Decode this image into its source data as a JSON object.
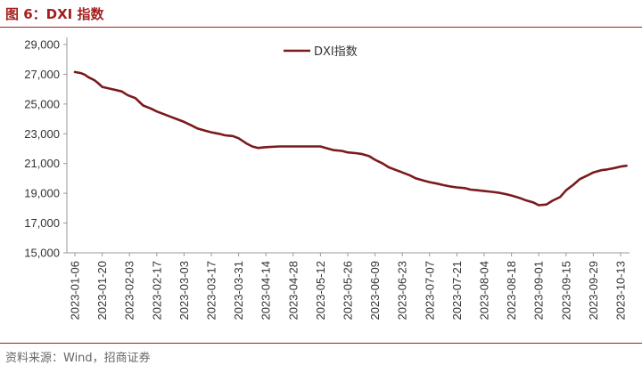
{
  "figure": {
    "title": "图 6：DXI 指数",
    "source": "资料来源：Wind，招商证券"
  },
  "chart_data": {
    "type": "line",
    "title": "",
    "xlabel": "",
    "ylabel": "",
    "ylim": [
      15000,
      29000
    ],
    "yticks": [
      15000,
      17000,
      19000,
      21000,
      23000,
      25000,
      27000,
      29000
    ],
    "ytick_labels": [
      "15,000",
      "17,000",
      "19,000",
      "21,000",
      "23,000",
      "25,000",
      "27,000",
      "29,000"
    ],
    "xticks": [
      "2023-01-06",
      "2023-01-20",
      "2023-02-03",
      "2023-02-17",
      "2023-03-03",
      "2023-03-17",
      "2023-03-31",
      "2023-04-14",
      "2023-04-28",
      "2023-05-12",
      "2023-05-26",
      "2023-06-09",
      "2023-06-23",
      "2023-07-07",
      "2023-07-21",
      "2023-08-04",
      "2023-08-18",
      "2023-09-01",
      "2023-09-15",
      "2023-09-29",
      "2023-10-13"
    ],
    "grid": false,
    "legend": "top-center",
    "series": [
      {
        "name": "DXI指数",
        "color": "#7a1a1c",
        "x": [
          "2023-01-06",
          "2023-01-09",
          "2023-01-11",
          "2023-01-13",
          "2023-01-16",
          "2023-01-18",
          "2023-01-20",
          "2023-01-25",
          "2023-01-30",
          "2023-02-02",
          "2023-02-03",
          "2023-02-06",
          "2023-02-10",
          "2023-02-14",
          "2023-02-17",
          "2023-02-20",
          "2023-02-24",
          "2023-02-28",
          "2023-03-03",
          "2023-03-07",
          "2023-03-10",
          "2023-03-14",
          "2023-03-17",
          "2023-03-21",
          "2023-03-24",
          "2023-03-28",
          "2023-03-31",
          "2023-04-04",
          "2023-04-07",
          "2023-04-10",
          "2023-04-14",
          "2023-04-21",
          "2023-04-28",
          "2023-05-05",
          "2023-05-12",
          "2023-05-16",
          "2023-05-19",
          "2023-05-23",
          "2023-05-26",
          "2023-05-30",
          "2023-06-02",
          "2023-06-06",
          "2023-06-09",
          "2023-06-13",
          "2023-06-16",
          "2023-06-20",
          "2023-06-23",
          "2023-06-27",
          "2023-06-30",
          "2023-07-04",
          "2023-07-07",
          "2023-07-11",
          "2023-07-14",
          "2023-07-18",
          "2023-07-21",
          "2023-07-25",
          "2023-07-28",
          "2023-08-01",
          "2023-08-04",
          "2023-08-08",
          "2023-08-11",
          "2023-08-15",
          "2023-08-18",
          "2023-08-22",
          "2023-08-25",
          "2023-08-29",
          "2023-09-01",
          "2023-09-05",
          "2023-09-08",
          "2023-09-12",
          "2023-09-15",
          "2023-09-19",
          "2023-09-22",
          "2023-09-26",
          "2023-09-29",
          "2023-10-03",
          "2023-10-06",
          "2023-10-10",
          "2023-10-13",
          "2023-10-16"
        ],
        "y": [
          27150,
          27080,
          26980,
          26800,
          26600,
          26400,
          26150,
          26000,
          25850,
          25600,
          25550,
          25400,
          24900,
          24700,
          24500,
          24350,
          24150,
          23950,
          23800,
          23550,
          23350,
          23200,
          23100,
          23000,
          22900,
          22850,
          22700,
          22350,
          22150,
          22050,
          22100,
          22150,
          22150,
          22150,
          22150,
          22000,
          21900,
          21850,
          21750,
          21700,
          21650,
          21500,
          21250,
          21000,
          20750,
          20550,
          20400,
          20200,
          20000,
          19850,
          19750,
          19650,
          19550,
          19450,
          19400,
          19350,
          19250,
          19200,
          19150,
          19100,
          19050,
          18950,
          18850,
          18700,
          18550,
          18400,
          18200,
          18250,
          18500,
          18750,
          19200,
          19600,
          19950,
          20200,
          20400,
          20550,
          20600,
          20700,
          20800,
          20850
        ]
      }
    ]
  }
}
